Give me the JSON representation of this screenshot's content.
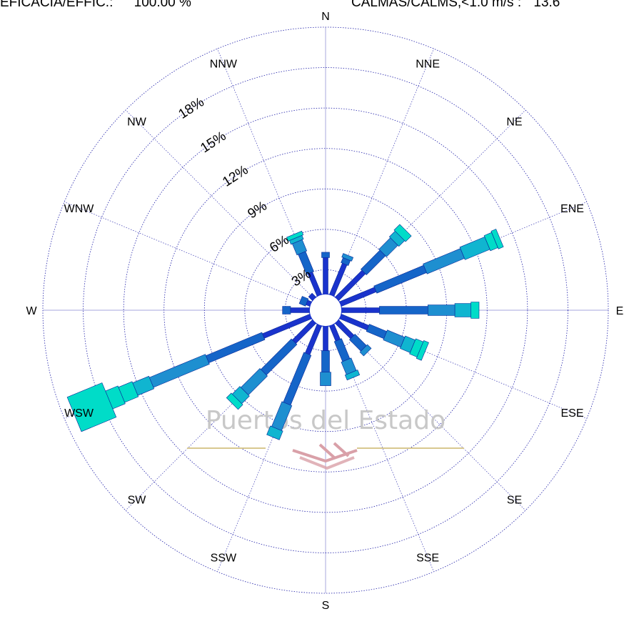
{
  "header": {
    "efficiency_label": "EFICACIA/EFFIC.:",
    "efficiency_value": "100.00 %",
    "calms_label": "CALMAS/CALMS,<1.0 m/s :",
    "calms_value": "13.6"
  },
  "watermark": {
    "text": "Puertos del Estado"
  },
  "colors": {
    "grid": "#2222aa",
    "level1": "#1a33cc",
    "level2": "#1565c8",
    "level3": "#1e8fd0",
    "level4": "#10b5d0",
    "level5": "#00dcc8",
    "logo_line": "#d8c890",
    "logo_mark": "#d9a0a8"
  },
  "chart_data": {
    "type": "rose",
    "title": "",
    "directions": [
      "N",
      "NNE",
      "NE",
      "ENE",
      "E",
      "ESE",
      "SE",
      "SSE",
      "S",
      "SSW",
      "SW",
      "WSW",
      "W",
      "WNW",
      "NW",
      "NNW"
    ],
    "ring_values": [
      3,
      6,
      9,
      12,
      15,
      18
    ],
    "ring_labels": [
      "3%",
      "6%",
      "9%",
      "12%",
      "15%",
      "18%"
    ],
    "rmax": 21,
    "calm_radius": 1.2,
    "segments": [
      {
        "dir": "N",
        "cum": [
          3.9,
          4.3
        ]
      },
      {
        "dir": "NNE",
        "cum": [
          3.7,
          4.1,
          4.4
        ]
      },
      {
        "dir": "NE",
        "cum": [
          4.0,
          6.0,
          7.2,
          7.8,
          8.4
        ]
      },
      {
        "dir": "ENE",
        "cum": [
          4.0,
          8.0,
          11.0,
          13.0,
          13.6,
          14.0
        ]
      },
      {
        "dir": "E",
        "cum": [
          4.0,
          7.6,
          9.6,
          10.8,
          11.4
        ]
      },
      {
        "dir": "ESE",
        "cum": [
          3.4,
          4.8,
          6.2,
          7.0,
          7.6,
          8.0
        ]
      },
      {
        "dir": "SE",
        "cum": [
          2.8,
          4.0,
          4.4
        ]
      },
      {
        "dir": "SSE",
        "cum": [
          2.4,
          4.0,
          5.0,
          5.4
        ]
      },
      {
        "dir": "S",
        "cum": [
          3.0,
          4.6,
          5.6
        ]
      },
      {
        "dir": "SSW",
        "cum": [
          3.5,
          7.5,
          9.5,
          10.2
        ]
      },
      {
        "dir": "SW",
        "cum": [
          3.3,
          6.5,
          8.5,
          9.3,
          9.8
        ]
      },
      {
        "dir": "WSW",
        "cum": [
          5.0,
          9.5,
          14.0,
          15.3,
          16.4,
          17.4,
          20.2
        ]
      },
      {
        "dir": "W",
        "cum": [
          2.6,
          3.2
        ]
      },
      {
        "dir": "WNW",
        "cum": [
          1.5,
          2.0
        ]
      },
      {
        "dir": "NW",
        "cum": [
          1.6
        ]
      },
      {
        "dir": "NNW",
        "cum": [
          3.0,
          4.6,
          5.5,
          5.8,
          6.1
        ]
      }
    ]
  }
}
